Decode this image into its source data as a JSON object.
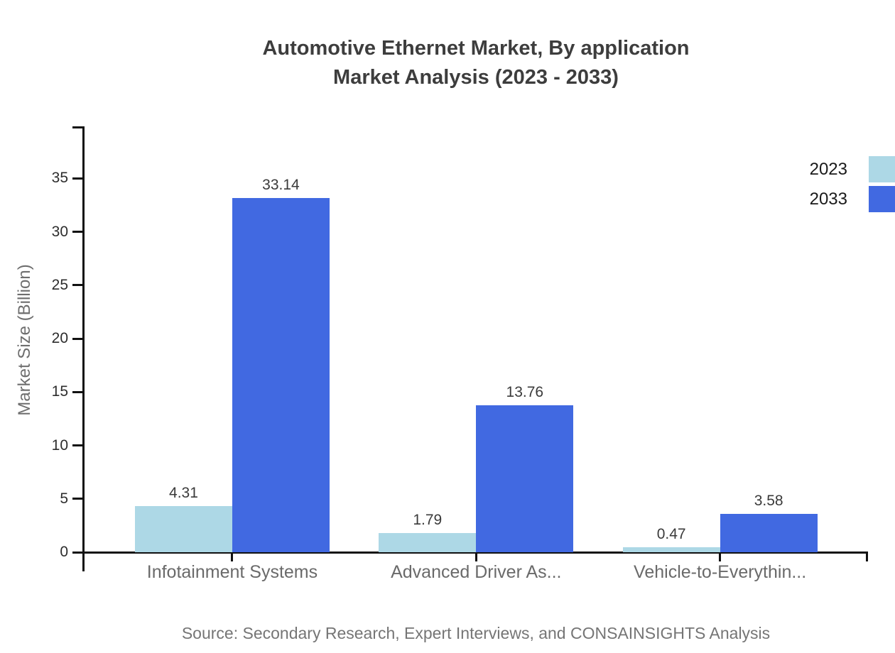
{
  "chart": {
    "title_line1": "Automotive Ethernet Market, By application",
    "title_line2": "Market Analysis (2023 - 2033)",
    "ylabel": "Market Size (Billion)",
    "source": "Source: Secondary Research, Expert Interviews, and CONSAINSIGHTS Analysis"
  },
  "chart_data": {
    "type": "bar",
    "title": "Automotive Ethernet Market, By application Market Analysis (2023 - 2033)",
    "categories": [
      "Infotainment Systems",
      "Advanced Driver As...",
      "Vehicle-to-Everythin..."
    ],
    "series": [
      {
        "name": "2023",
        "color": "#ADD8E6",
        "values": [
          4.31,
          1.79,
          0.47
        ]
      },
      {
        "name": "2033",
        "color": "#4169E1",
        "values": [
          33.14,
          13.76,
          3.58
        ]
      }
    ],
    "value_labels": [
      "4.31",
      "33.14",
      "1.79",
      "13.76",
      "0.47",
      "3.58"
    ],
    "xlabel": "",
    "ylabel": "Market Size (Billion)",
    "ylim": [
      0,
      40
    ],
    "yticks": [
      0,
      5,
      10,
      15,
      20,
      25,
      30,
      35
    ],
    "grid": false,
    "legend_position": "top-right",
    "axis_color": "#111111",
    "background": "#ffffff"
  }
}
